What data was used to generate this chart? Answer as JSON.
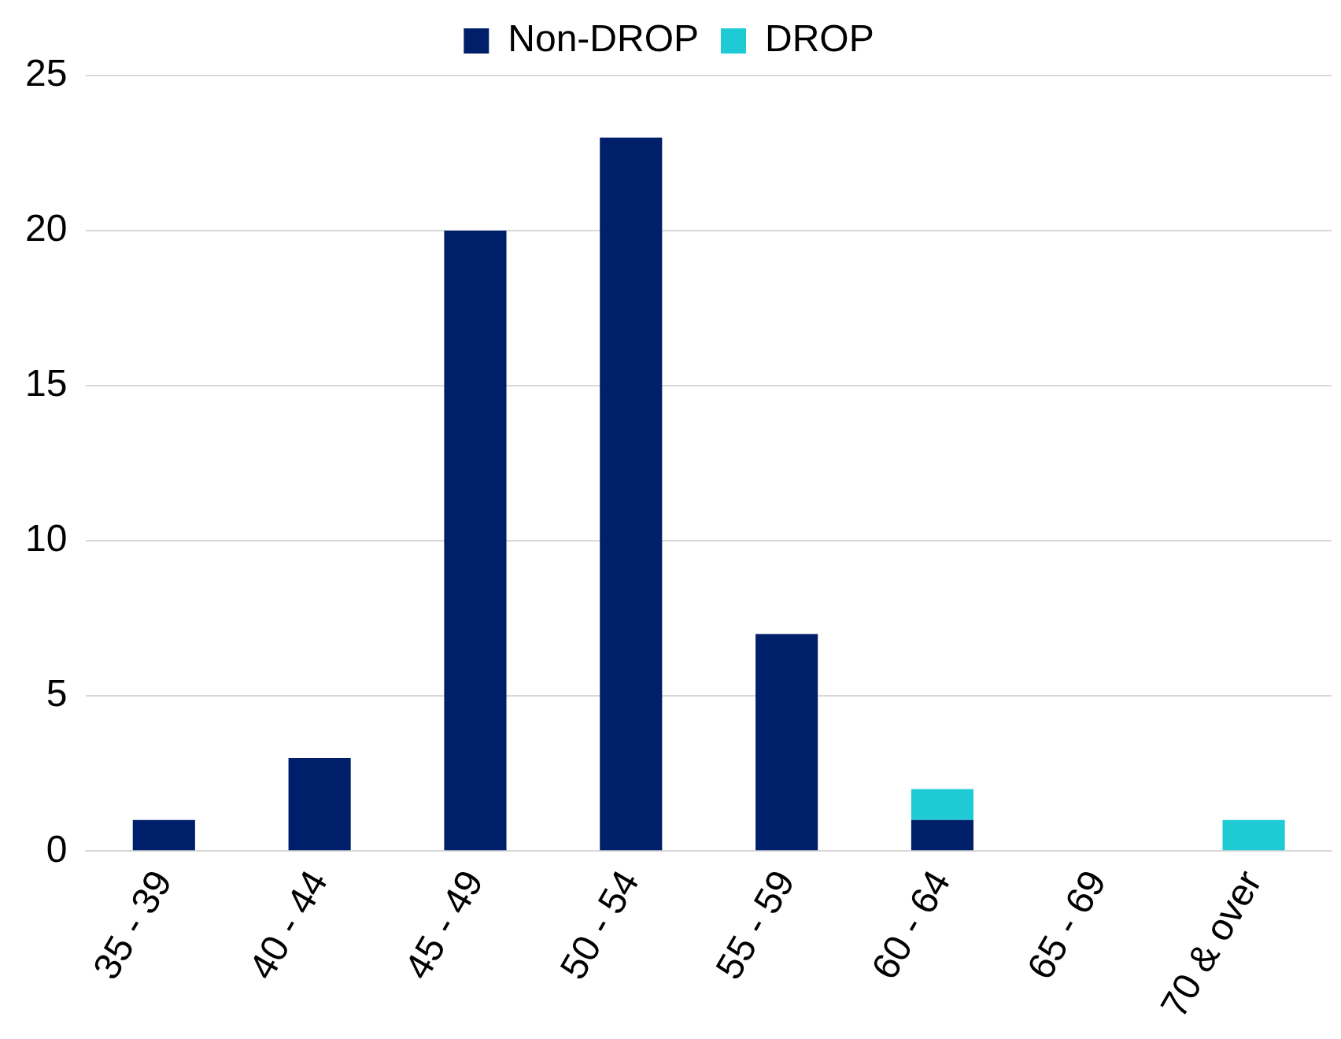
{
  "chart_data": {
    "type": "bar",
    "stacked": true,
    "categories": [
      "35 - 39",
      "40 - 44",
      "45 - 49",
      "50 - 54",
      "55 - 59",
      "60 - 64",
      "65 - 69",
      "70 & over"
    ],
    "series": [
      {
        "name": "Non-DROP",
        "color": "#001f6b",
        "values": [
          1,
          3,
          20,
          23,
          7,
          1,
          0,
          0
        ]
      },
      {
        "name": "DROP",
        "color": "#1ecad3",
        "values": [
          0,
          0,
          0,
          0,
          0,
          1,
          0,
          1
        ]
      }
    ],
    "ylim": [
      0,
      25
    ],
    "yticks": [
      0,
      5,
      10,
      15,
      20,
      25
    ],
    "grid": "y",
    "legend": "top"
  }
}
